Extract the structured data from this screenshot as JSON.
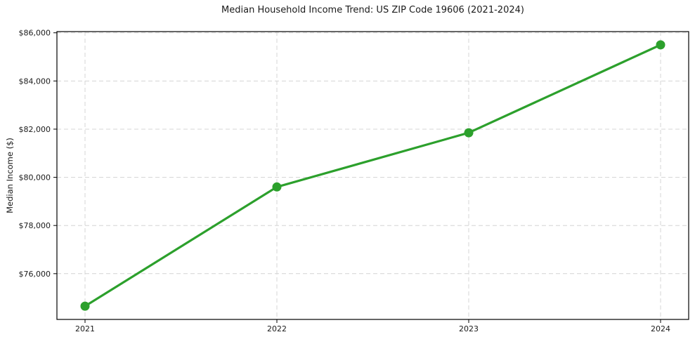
{
  "chart_data": {
    "type": "line",
    "title": "Median Household Income Trend: US ZIP Code 19606 (2021-2024)",
    "xlabel": "",
    "ylabel": "Median Income ($)",
    "categories": [
      "2021",
      "2022",
      "2023",
      "2024"
    ],
    "series": [
      {
        "name": "Median Household Income",
        "values": [
          74650,
          79600,
          81850,
          85500
        ]
      }
    ],
    "ylim": [
      74100,
      86050
    ],
    "yticks": [
      76000,
      78000,
      80000,
      82000,
      84000,
      86000
    ],
    "ytick_labels": [
      "$76,000",
      "$78,000",
      "$80,000",
      "$82,000",
      "$84,000",
      "$86,000"
    ],
    "grid": true,
    "legend_position": "none",
    "colors": {
      "line": "#2ca02c",
      "marker": "#2ca02c",
      "grid": "#d4d4d4",
      "spine": "#000000",
      "text": "#1a1a1a"
    }
  }
}
